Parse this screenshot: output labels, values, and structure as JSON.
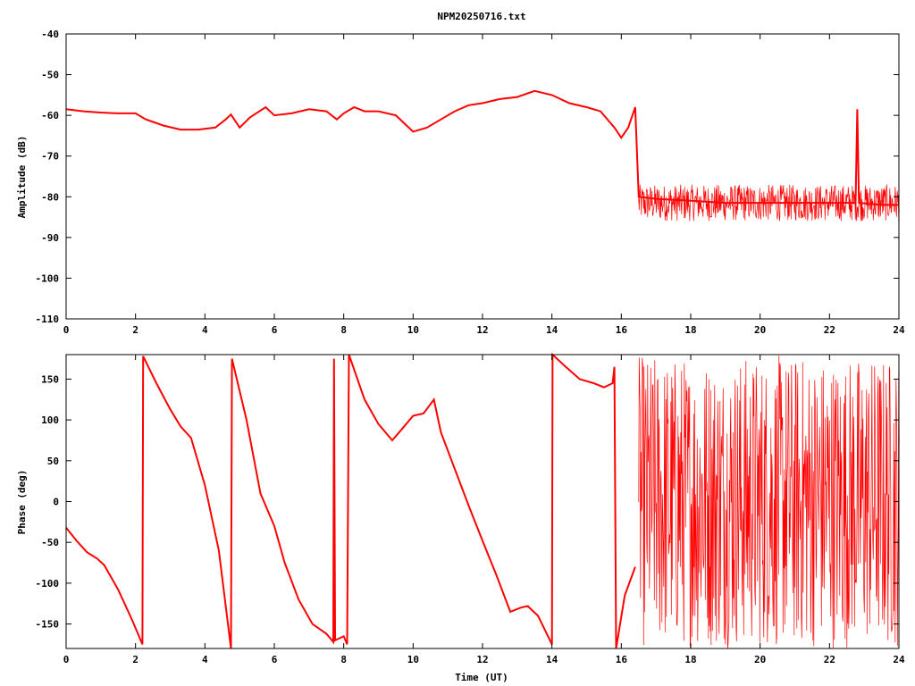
{
  "title": "NPM20250716.txt",
  "colors": {
    "series": "#ff0000",
    "axes": "#000000",
    "background": "#ffffff"
  },
  "chart_data": [
    {
      "type": "line",
      "title": "NPM20250716.txt",
      "xlabel": "",
      "ylabel": "Amplitude (dB)",
      "xlim": [
        0,
        24
      ],
      "ylim": [
        -110,
        -40
      ],
      "x_ticks": [
        "0",
        "2",
        "4",
        "6",
        "8",
        "10",
        "12",
        "14",
        "16",
        "18",
        "20",
        "22",
        "24"
      ],
      "y_ticks": [
        "-40",
        "-50",
        "-60",
        "-70",
        "-80",
        "-90",
        "-100",
        "-110"
      ],
      "grid": false,
      "series": [
        {
          "color": "#ff0000",
          "points": [
            [
              0,
              -58.5
            ],
            [
              0.5,
              -59
            ],
            [
              1,
              -59.3
            ],
            [
              1.5,
              -59.5
            ],
            [
              2,
              -59.5
            ],
            [
              2.3,
              -61
            ],
            [
              2.8,
              -62.5
            ],
            [
              3.3,
              -63.5
            ],
            [
              3.8,
              -63.5
            ],
            [
              4.3,
              -63
            ],
            [
              4.6,
              -61
            ],
            [
              4.75,
              -59.8
            ],
            [
              5,
              -63
            ],
            [
              5.3,
              -60.5
            ],
            [
              5.75,
              -58
            ],
            [
              6,
              -60
            ],
            [
              6.5,
              -59.5
            ],
            [
              7,
              -58.5
            ],
            [
              7.5,
              -59
            ],
            [
              7.8,
              -61
            ],
            [
              8,
              -59.5
            ],
            [
              8.3,
              -58
            ],
            [
              8.6,
              -59
            ],
            [
              9,
              -59
            ],
            [
              9.5,
              -60
            ],
            [
              10,
              -64
            ],
            [
              10.4,
              -63
            ],
            [
              10.8,
              -61
            ],
            [
              11.2,
              -59
            ],
            [
              11.6,
              -57.5
            ],
            [
              12,
              -57
            ],
            [
              12.5,
              -56
            ],
            [
              13,
              -55.5
            ],
            [
              13.5,
              -54
            ],
            [
              14,
              -55
            ],
            [
              14.5,
              -57
            ],
            [
              15,
              -58
            ],
            [
              15.4,
              -59
            ],
            [
              15.8,
              -63
            ],
            [
              16,
              -65.5
            ],
            [
              16.2,
              -63
            ],
            [
              16.4,
              -58
            ],
            [
              16.5,
              -80
            ],
            [
              17,
              -80.5
            ],
            [
              18,
              -81
            ],
            [
              19,
              -81.5
            ],
            [
              20,
              -81.5
            ],
            [
              21,
              -81.5
            ],
            [
              22,
              -81.5
            ],
            [
              22.75,
              -81.5
            ],
            [
              22.8,
              -58.5
            ],
            [
              22.85,
              -81.5
            ],
            [
              23.5,
              -82
            ],
            [
              24,
              -82
            ]
          ],
          "noise_band": [
            {
              "x_start": 16.5,
              "x_end": 24,
              "y_low": -86,
              "y_high": -77
            }
          ]
        }
      ]
    },
    {
      "type": "line",
      "title": "",
      "xlabel": "Time (UT)",
      "ylabel": "Phase (deg)",
      "xlim": [
        0,
        24
      ],
      "ylim": [
        -180,
        180
      ],
      "x_ticks": [
        "0",
        "2",
        "4",
        "6",
        "8",
        "10",
        "12",
        "14",
        "16",
        "18",
        "20",
        "22",
        "24"
      ],
      "y_ticks": [
        "150",
        "100",
        "50",
        "0",
        "-50",
        "-100",
        "-150"
      ],
      "grid": false,
      "series": [
        {
          "color": "#ff0000",
          "points": [
            [
              0,
              -32
            ],
            [
              0.3,
              -48
            ],
            [
              0.6,
              -62
            ],
            [
              0.9,
              -70
            ],
            [
              1.1,
              -78
            ],
            [
              1.5,
              -108
            ],
            [
              1.9,
              -145
            ],
            [
              2.2,
              -175
            ],
            [
              2.22,
              178
            ],
            [
              2.6,
              145
            ],
            [
              3.0,
              113
            ],
            [
              3.3,
              92
            ],
            [
              3.6,
              78
            ],
            [
              4.0,
              20
            ],
            [
              4.4,
              -60
            ],
            [
              4.75,
              -180
            ],
            [
              4.78,
              175
            ],
            [
              5.2,
              100
            ],
            [
              5.6,
              10
            ],
            [
              6.0,
              -30
            ],
            [
              6.3,
              -75
            ],
            [
              6.7,
              -120
            ],
            [
              7.1,
              -150
            ],
            [
              7.5,
              -162
            ],
            [
              7.7,
              -172
            ],
            [
              7.72,
              175
            ],
            [
              7.75,
              -170
            ],
            [
              8.0,
              -165
            ],
            [
              8.1,
              -175
            ],
            [
              8.15,
              180
            ],
            [
              8.6,
              125
            ],
            [
              9.0,
              95
            ],
            [
              9.4,
              75
            ],
            [
              9.7,
              90
            ],
            [
              10.0,
              105
            ],
            [
              10.3,
              108
            ],
            [
              10.6,
              125
            ],
            [
              10.8,
              85
            ],
            [
              11.2,
              40
            ],
            [
              11.6,
              -5
            ],
            [
              12.0,
              -48
            ],
            [
              12.4,
              -90
            ],
            [
              12.8,
              -135
            ],
            [
              13.1,
              -130
            ],
            [
              13.3,
              -128
            ],
            [
              13.6,
              -140
            ],
            [
              14.0,
              -175
            ],
            [
              14.02,
              180
            ],
            [
              14.4,
              165
            ],
            [
              14.8,
              150
            ],
            [
              15.2,
              145
            ],
            [
              15.5,
              140
            ],
            [
              15.75,
              145
            ],
            [
              15.8,
              165
            ],
            [
              15.85,
              -180
            ],
            [
              16.1,
              -115
            ],
            [
              16.4,
              -80
            ]
          ],
          "noise_band": [
            {
              "x_start": 16.5,
              "x_end": 24,
              "y_low": -180,
              "y_high": 180
            }
          ]
        }
      ]
    }
  ]
}
